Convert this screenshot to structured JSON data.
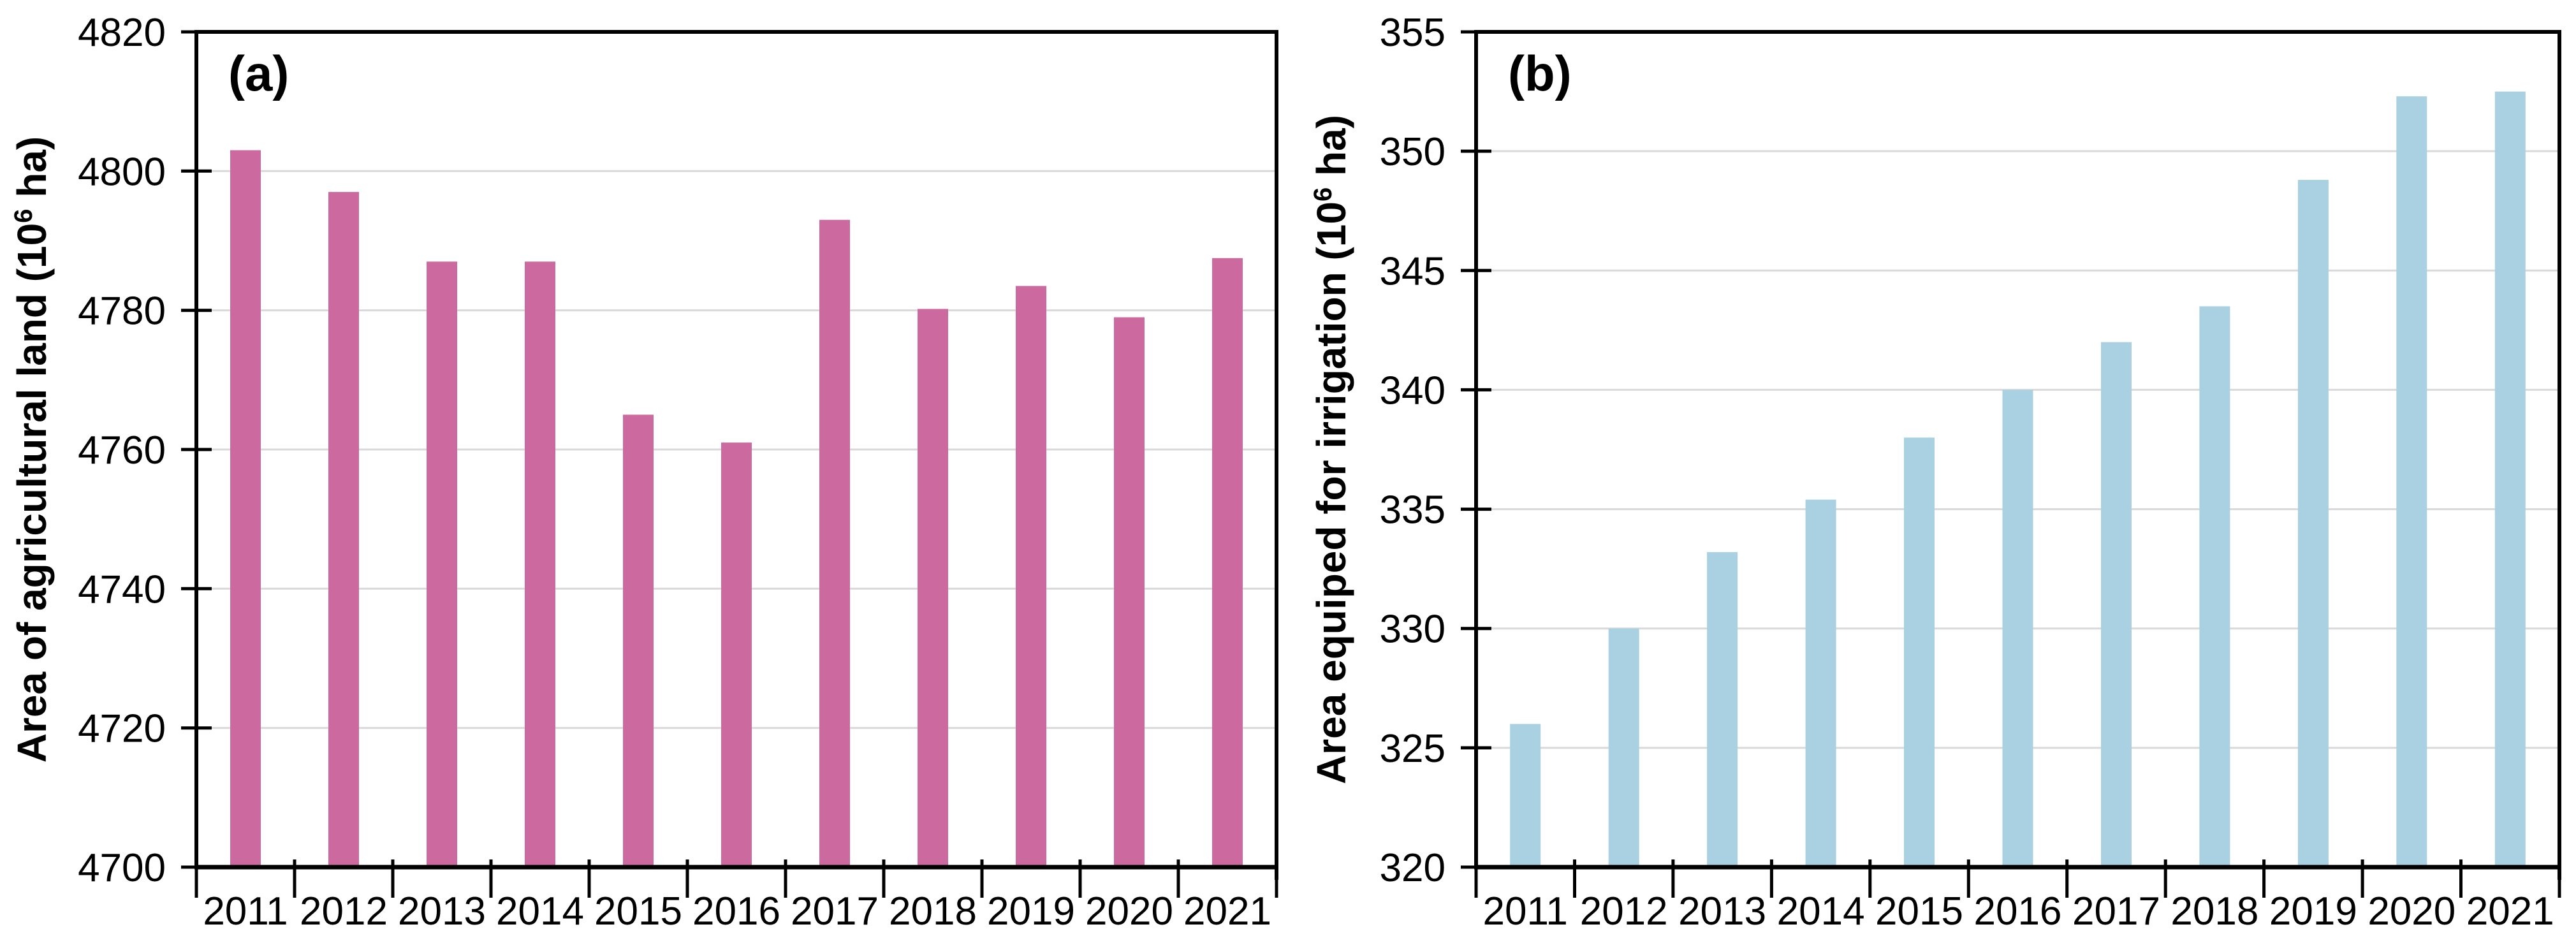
{
  "styles": {
    "background": "#ffffff",
    "text_color": "#000000",
    "axis_color": "#000000",
    "grid_color": "#d9d9d9"
  },
  "chart_data": [
    {
      "type": "bar",
      "panel_label": "(a)",
      "categories": [
        "2011",
        "2012",
        "2013",
        "2014",
        "2015",
        "2016",
        "2017",
        "2018",
        "2019",
        "2020",
        "2021"
      ],
      "values": [
        4803,
        4797,
        4787,
        4787,
        4765,
        4761,
        4793,
        4780.2,
        4783.5,
        4779,
        4787.5
      ],
      "xlabel": "",
      "ylabel": "Area of agricultural land (10⁶ ha)",
      "ylim": [
        4700,
        4820
      ],
      "ytick_step": 20,
      "ytick_labels": [
        "4700",
        "4720",
        "4740",
        "4760",
        "4780",
        "4800",
        "4820"
      ],
      "bar_color": "#cc6a9f",
      "grid": true,
      "legend": "none"
    },
    {
      "type": "bar",
      "panel_label": "(b)",
      "categories": [
        "2011",
        "2012",
        "2013",
        "2014",
        "2015",
        "2016",
        "2017",
        "2018",
        "2019",
        "2020",
        "2021"
      ],
      "values": [
        326,
        330,
        333.2,
        335.4,
        338,
        340,
        342,
        343.5,
        348.8,
        352.3,
        352.5
      ],
      "xlabel": "",
      "ylabel": "Area equiped for irrigation (10⁶ ha)",
      "ylim": [
        320,
        355
      ],
      "ytick_step": 5,
      "ytick_labels": [
        "320",
        "325",
        "330",
        "335",
        "340",
        "345",
        "350",
        "355"
      ],
      "bar_color": "#a9d1e2",
      "grid": true,
      "legend": "none"
    }
  ]
}
